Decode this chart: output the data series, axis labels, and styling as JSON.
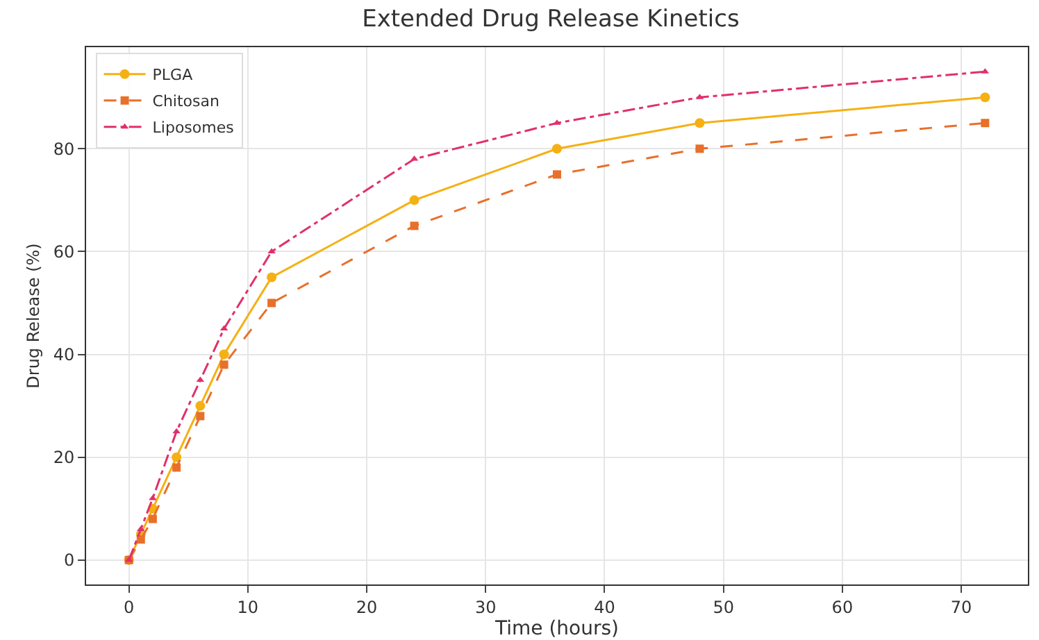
{
  "chart_data": {
    "type": "line",
    "title": "Extended Drug Release Kinetics",
    "xlabel": "Time (hours)",
    "ylabel": "Drug Release (%)",
    "x": [
      0,
      1,
      2,
      4,
      6,
      8,
      12,
      24,
      36,
      48,
      72
    ],
    "series": [
      {
        "name": "PLGA",
        "color": "#f5b014",
        "marker": "circle",
        "line_style": "solid",
        "values": [
          0,
          5,
          10,
          20,
          30,
          40,
          55,
          70,
          80,
          85,
          90
        ]
      },
      {
        "name": "Chitosan",
        "color": "#e8702a",
        "marker": "square",
        "line_style": "dashed",
        "values": [
          0,
          4,
          8,
          18,
          28,
          38,
          50,
          65,
          75,
          80,
          85
        ]
      },
      {
        "name": "Liposomes",
        "color": "#e0306a",
        "marker": "triangle",
        "line_style": "dashdot",
        "values": [
          0,
          6,
          12,
          25,
          35,
          45,
          60,
          78,
          85,
          90,
          95
        ]
      }
    ],
    "xlim": [
      -3.6,
      75.6
    ],
    "xticks": [
      0,
      10,
      20,
      30,
      40,
      50,
      60,
      70
    ],
    "ylim": [
      -4.75,
      99.75
    ],
    "yticks": [
      0,
      20,
      40,
      60,
      80
    ],
    "grid": true,
    "legend": "top left"
  }
}
